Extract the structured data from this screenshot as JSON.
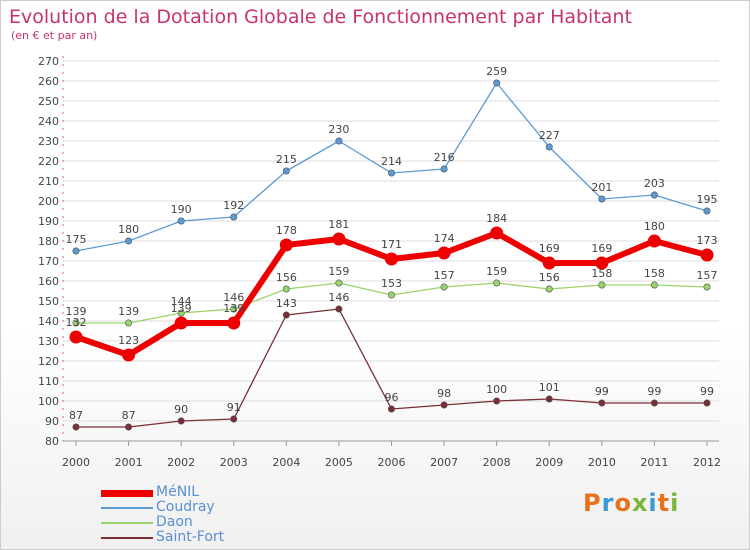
{
  "header": {
    "title": "Evolution de la Dotation Globale de Fonctionnement par Habitant",
    "subtitle": "(en € et par an)"
  },
  "colors": {
    "title": "#c8336e",
    "axis_text": "#444444",
    "grid": "#dddddd",
    "legend_text": "#5a8fd0"
  },
  "logo": {
    "text": "Proxiti",
    "colors": [
      "#e8711a",
      "#3a9ad9",
      "#e8711a",
      "#7ab83c",
      "#3a9ad9",
      "#e8711a",
      "#7ab83c"
    ]
  },
  "chart_data": {
    "type": "line",
    "title": "Evolution de la Dotation Globale de Fonctionnement par Habitant",
    "subtitle": "(en € et par an)",
    "x": [
      "2000",
      "2001",
      "2002",
      "2003",
      "2004",
      "2005",
      "2006",
      "2007",
      "2008",
      "2009",
      "2010",
      "2011",
      "2012"
    ],
    "ylim": [
      80,
      270
    ],
    "yticks": [
      80,
      90,
      100,
      110,
      120,
      130,
      140,
      150,
      160,
      170,
      180,
      190,
      200,
      210,
      220,
      230,
      240,
      250,
      260,
      270
    ],
    "grid": true,
    "legend_position": "bottom-left",
    "series": [
      {
        "name": "Coudray",
        "color": "#5b9bd5",
        "values": [
          175,
          180,
          190,
          192,
          215,
          230,
          214,
          216,
          259,
          227,
          201,
          203,
          195
        ]
      },
      {
        "name": "Daon",
        "color": "#99d36b",
        "values": [
          139,
          139,
          144,
          146,
          156,
          159,
          153,
          157,
          159,
          156,
          158,
          158,
          157
        ]
      },
      {
        "name": "Saint-Fort",
        "color": "#7a2e35",
        "values": [
          87,
          87,
          90,
          91,
          143,
          146,
          96,
          98,
          100,
          101,
          99,
          99,
          99
        ]
      },
      {
        "name": "MéNIL",
        "color": "#ee0000",
        "values": [
          132,
          123,
          139,
          139,
          178,
          181,
          171,
          174,
          184,
          169,
          169,
          180,
          173
        ]
      }
    ],
    "legend_order": [
      "MéNIL",
      "Coudray",
      "Daon",
      "Saint-Fort"
    ]
  }
}
